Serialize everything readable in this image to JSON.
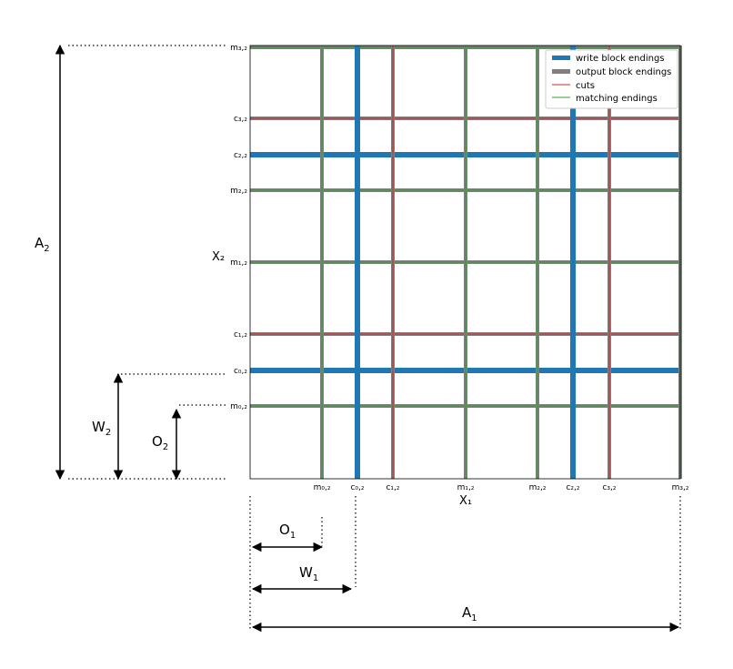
{
  "x_ticks": [
    "m₀,₂",
    "c₀,₂",
    "c₁,₂",
    "m₁,₂",
    "m₂,₂",
    "c₂,₂",
    "c₃,₂",
    "m₃,₂"
  ],
  "y_ticks": [
    "m₀,₂",
    "c₀,₂",
    "c₁,₂",
    "m₁,₂",
    "m₂,₂",
    "c₂,₂",
    "c₃,₂",
    "m₃,₂"
  ],
  "x_axis_label": "X₁",
  "y_axis_label": "X₂",
  "legend": {
    "items": [
      {
        "label": "write block endings",
        "color": "#1f77b4"
      },
      {
        "label": "output block endings",
        "color": "#7f7f7f"
      },
      {
        "label": "cuts",
        "color": "#d62728"
      },
      {
        "label": "matching endings",
        "color": "#2ca02c"
      }
    ]
  },
  "dimensions": {
    "A2": {
      "main": "A",
      "sub": "2"
    },
    "W2": {
      "main": "W",
      "sub": "2"
    },
    "O2": {
      "main": "O",
      "sub": "2"
    },
    "O1": {
      "main": "O",
      "sub": "1"
    },
    "W1": {
      "main": "W",
      "sub": "1"
    },
    "A1": {
      "main": "A",
      "sub": "1"
    }
  },
  "colors": {
    "write": "#1f77b4",
    "output": "#7f7f7f",
    "cuts": "#d62728",
    "matching": "#2ca02c",
    "frame": "#000000"
  }
}
